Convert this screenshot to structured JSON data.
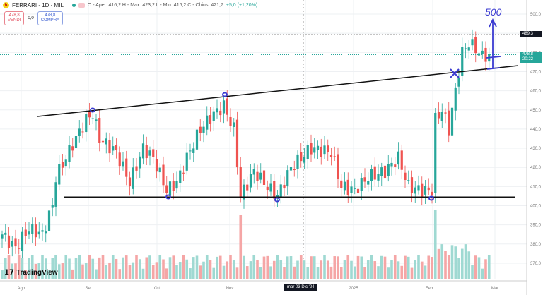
{
  "header": {
    "symbol": "FERRARI - 1D - MIL",
    "ohlc": "O - Aper. 416,2  H - Max. 423,2  L - Min. 416,2  C - Chius. 421,7",
    "change": "+5,0 (+1,20%)"
  },
  "trade": {
    "sell_price": "478,8",
    "sell_label": "VENDI",
    "spread": "0,0",
    "buy_price": "478,8",
    "buy_label": "COMPRA"
  },
  "price_axis": {
    "ticks": [
      "500,0",
      "490,0",
      "480,0",
      "470,0",
      "460,0",
      "450,0",
      "440,0",
      "430,0",
      "420,0",
      "410,0",
      "400,0",
      "390,0",
      "380,0",
      "370,0"
    ],
    "high_tag": "489,3",
    "last_tag": "478,8",
    "countdown": "20:22"
  },
  "time_axis": {
    "ticks": [
      "Ago",
      "Set",
      "Ott",
      "Nov",
      "2025",
      "Feb",
      "Mar"
    ],
    "crosshair_label": "mar 03 Dic '24"
  },
  "annotation": {
    "text": "500"
  },
  "brand": "TradingView",
  "colors": {
    "up": "#26a69a",
    "down": "#ef5350",
    "drawing": "#3b3bd1"
  },
  "chart_data": {
    "type": "candlestick",
    "keypoints": [
      [
        0,
        385
      ],
      [
        4,
        378
      ],
      [
        8,
        388
      ],
      [
        12,
        385
      ],
      [
        15,
        400
      ],
      [
        16,
        415
      ],
      [
        19,
        425
      ],
      [
        21,
        432
      ],
      [
        25,
        445
      ],
      [
        27,
        448
      ],
      [
        29,
        435
      ],
      [
        34,
        428
      ],
      [
        38,
        412
      ],
      [
        42,
        430
      ],
      [
        45,
        425
      ],
      [
        49,
        408
      ],
      [
        52,
        412
      ],
      [
        55,
        425
      ],
      [
        59,
        440
      ],
      [
        63,
        448
      ],
      [
        66,
        452
      ],
      [
        69,
        440
      ],
      [
        71,
        405
      ],
      [
        75,
        418
      ],
      [
        80,
        408
      ],
      [
        82,
        405
      ],
      [
        86,
        420
      ],
      [
        92,
        430
      ],
      [
        98,
        428
      ],
      [
        101,
        410
      ],
      [
        105,
        408
      ],
      [
        109,
        415
      ],
      [
        114,
        418
      ],
      [
        118,
        425
      ],
      [
        121,
        410
      ],
      [
        125,
        408
      ],
      [
        128,
        408
      ],
      [
        129,
        445
      ],
      [
        131,
        450
      ],
      [
        133,
        440
      ],
      [
        135,
        460
      ],
      [
        137,
        480
      ],
      [
        139,
        485
      ],
      [
        141,
        482
      ],
      [
        143,
        478
      ],
      [
        145,
        479
      ]
    ],
    "trendlines": [
      {
        "name": "resistance",
        "from": [
          11,
          447
        ],
        "to": [
          154,
          473
        ]
      },
      {
        "name": "support",
        "value": 404.5
      }
    ]
  }
}
